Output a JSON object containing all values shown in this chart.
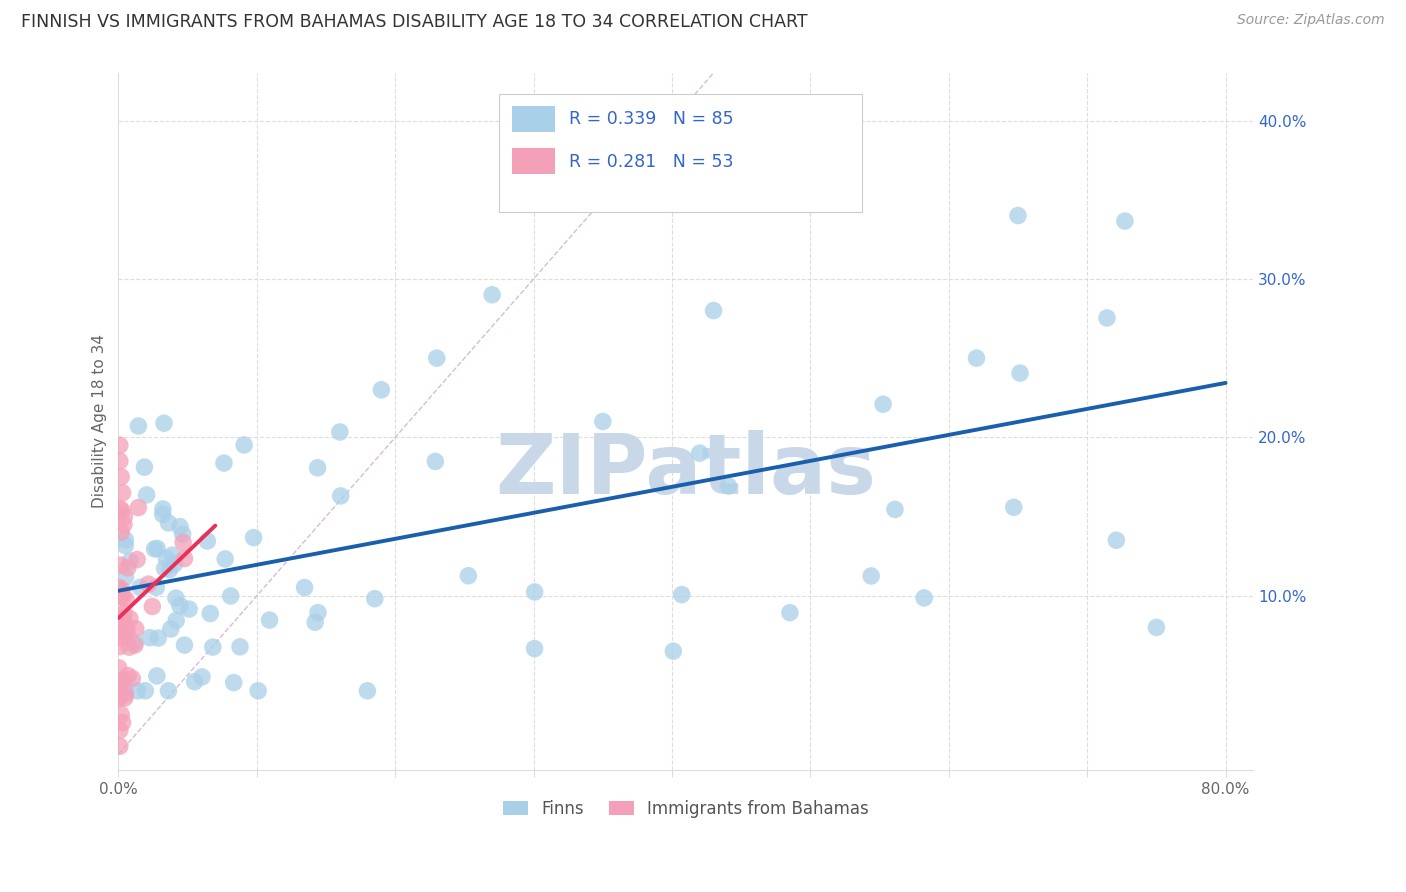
{
  "title": "FINNISH VS IMMIGRANTS FROM BAHAMAS DISABILITY AGE 18 TO 34 CORRELATION CHART",
  "source": "Source: ZipAtlas.com",
  "ylabel": "Disability Age 18 to 34",
  "xlim": [
    0.0,
    0.82
  ],
  "ylim": [
    -0.01,
    0.43
  ],
  "color_finns": "#A8D0E8",
  "color_immigrants": "#F4A0B8",
  "color_regression_finns": "#1A5FAB",
  "color_regression_immigrants": "#E8305A",
  "color_diagonal": "#CCBBCC",
  "color_grid": "#DDDDDD",
  "color_r_value": "#3366CC",
  "legend_r_finns": "0.339",
  "legend_n_finns": "85",
  "legend_r_immigrants": "0.281",
  "legend_n_immigrants": "53",
  "legend_label_finns": "Finns",
  "legend_label_immigrants": "Immigrants from Bahamas",
  "watermark_color": "#C8D8E8"
}
